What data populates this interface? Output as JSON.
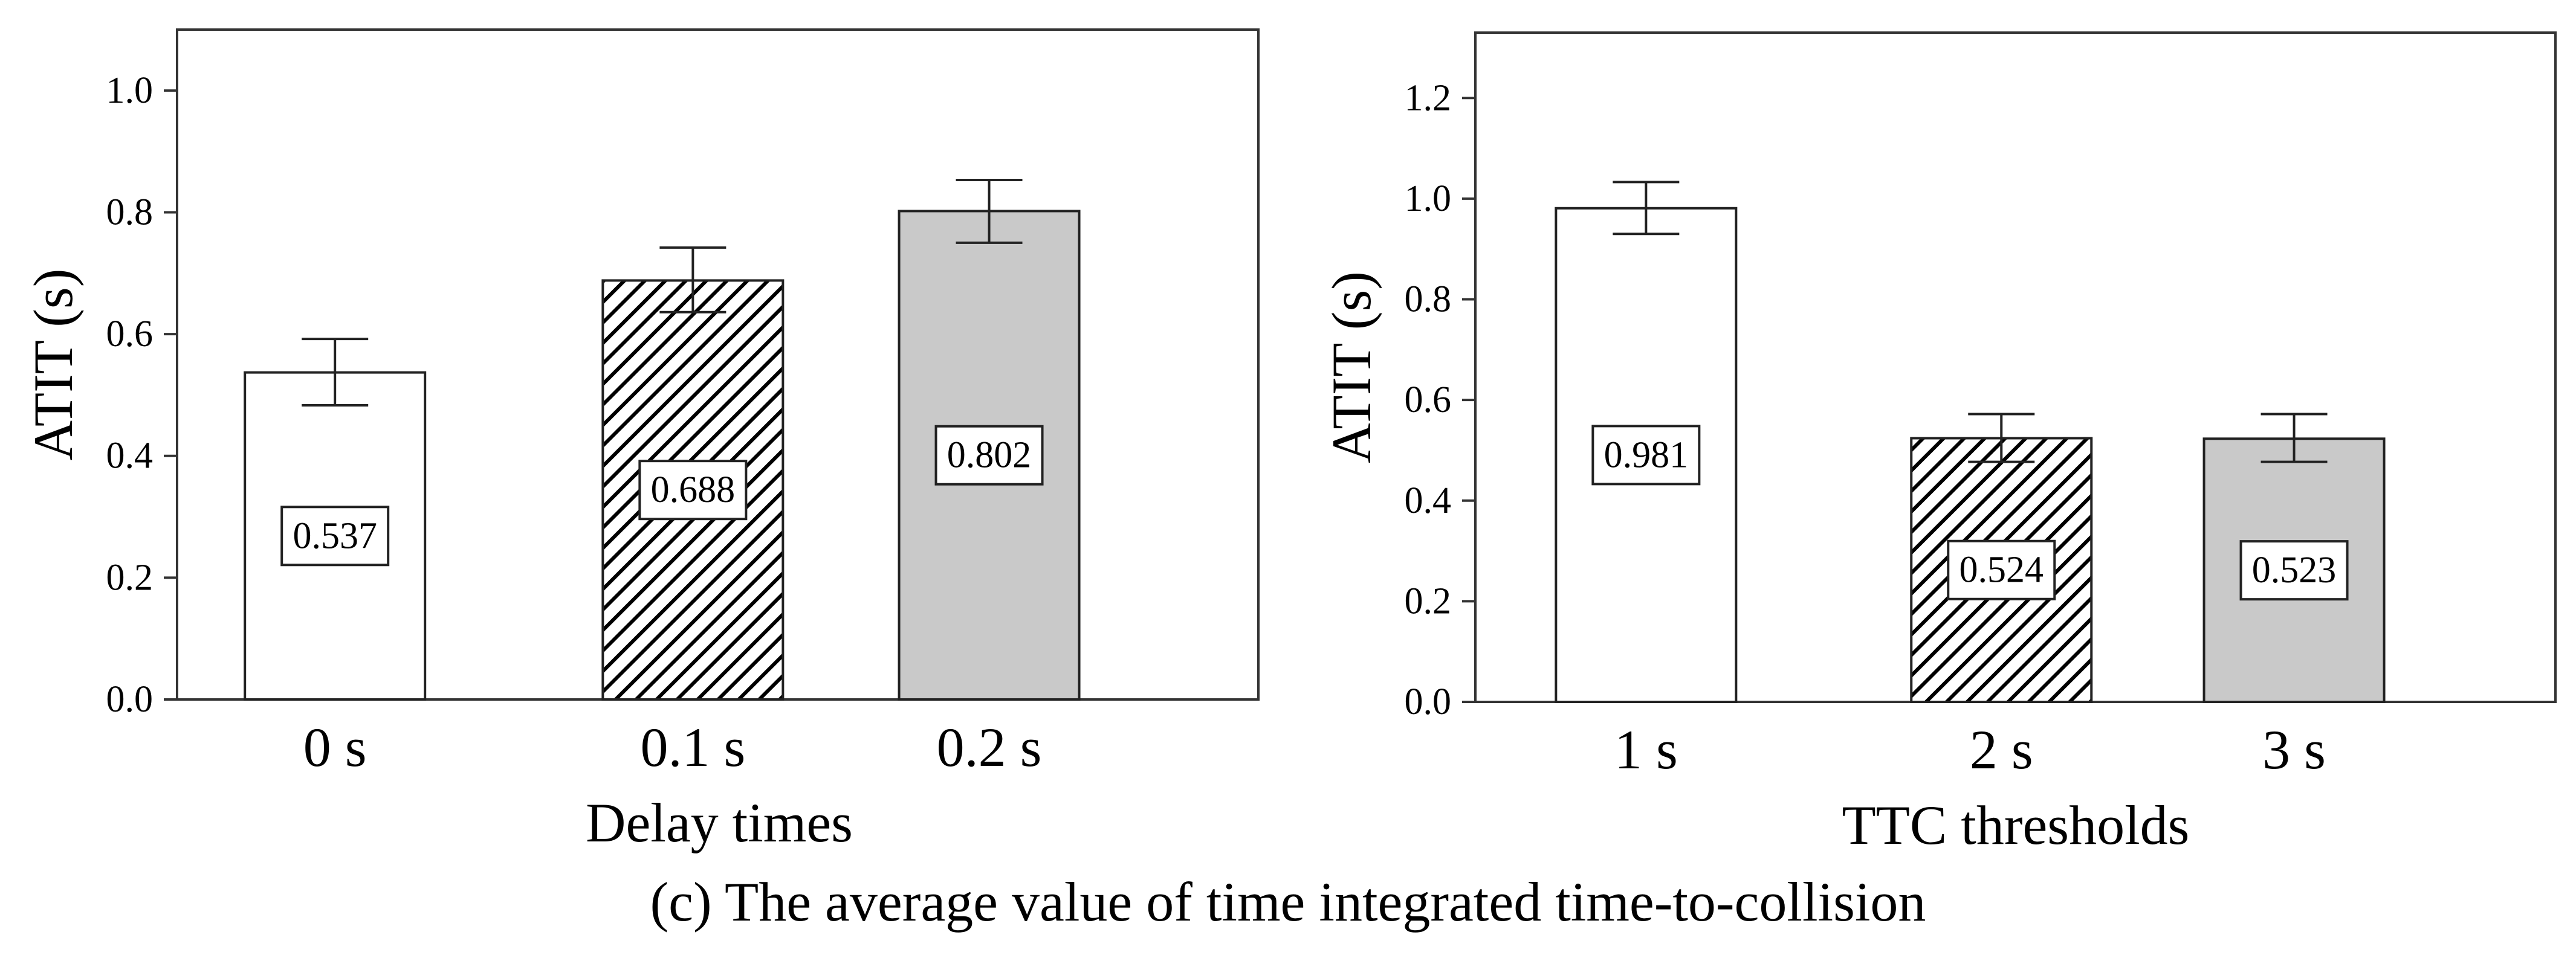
{
  "caption": "(c) The average value of time integrated time-to-collision",
  "chart_data": [
    {
      "type": "bar",
      "title": "",
      "xlabel": "Delay times",
      "ylabel": "ATIT (s)",
      "ylim": [
        0,
        1.1
      ],
      "yticks": [
        0.0,
        0.2,
        0.4,
        0.6,
        0.8,
        1.0
      ],
      "ytick_labels": [
        "0.0",
        "0.2",
        "0.4",
        "0.6",
        "0.8",
        "1.0"
      ],
      "categories": [
        "0 s",
        "0.1 s",
        "0.2 s"
      ],
      "values": [
        0.537,
        0.688,
        0.802
      ],
      "value_labels": [
        "0.537",
        "0.688",
        "0.802"
      ],
      "error_low": [
        0.483,
        0.636,
        0.75
      ],
      "error_high": [
        0.592,
        0.742,
        0.853
      ],
      "bar_fills": [
        "white",
        "hatch",
        "gray"
      ],
      "grid": false
    },
    {
      "type": "bar",
      "title": "",
      "xlabel": "TTC thresholds",
      "ylabel": "ATIT (s)",
      "ylim": [
        0,
        1.33
      ],
      "yticks": [
        0.0,
        0.2,
        0.4,
        0.6,
        0.8,
        1.0,
        1.2
      ],
      "ytick_labels": [
        "0.0",
        "0.2",
        "0.4",
        "0.6",
        "0.8",
        "1.0",
        "1.2"
      ],
      "categories": [
        "1 s",
        "2 s",
        "3 s"
      ],
      "values": [
        0.981,
        0.524,
        0.523
      ],
      "value_labels": [
        "0.981",
        "0.524",
        "0.523"
      ],
      "error_low": [
        0.93,
        0.477,
        0.477
      ],
      "error_high": [
        1.033,
        0.572,
        0.572
      ],
      "bar_fills": [
        "white",
        "hatch",
        "gray"
      ],
      "grid": false
    }
  ]
}
